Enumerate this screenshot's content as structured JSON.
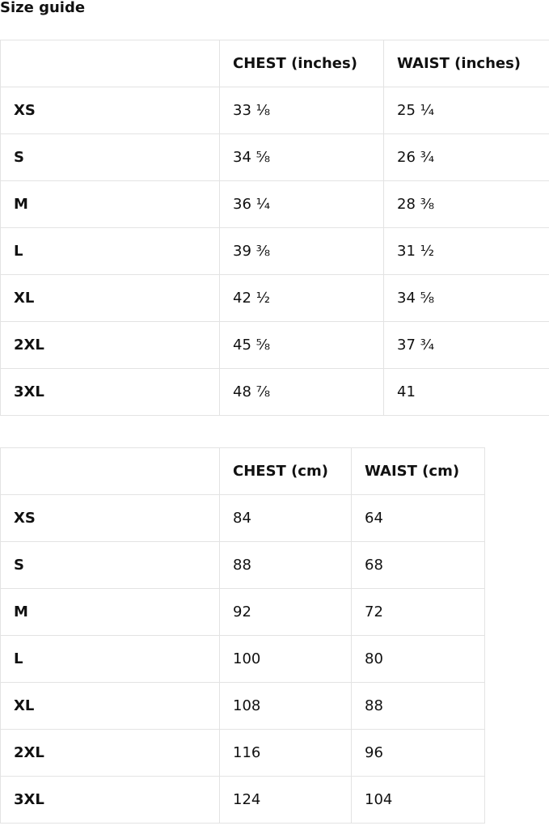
{
  "title": "Size guide",
  "inches_table": {
    "headers": [
      "",
      "CHEST (inches)",
      "WAIST (inches)"
    ],
    "rows": [
      [
        "XS",
        "33 ⅛",
        "25 ¼"
      ],
      [
        "S",
        "34 ⅝",
        "26 ¾"
      ],
      [
        "M",
        "36 ¼",
        "28 ⅜"
      ],
      [
        "L",
        "39 ⅜",
        "31 ½"
      ],
      [
        "XL",
        "42 ½",
        "34 ⅝"
      ],
      [
        "2XL",
        "45 ⅝",
        "37 ¾"
      ],
      [
        "3XL",
        "48 ⅞",
        "41"
      ]
    ]
  },
  "cm_table": {
    "headers": [
      "",
      "CHEST (cm)",
      "WAIST (cm)"
    ],
    "rows": [
      [
        "XS",
        "84",
        "64"
      ],
      [
        "S",
        "88",
        "68"
      ],
      [
        "M",
        "92",
        "72"
      ],
      [
        "L",
        "100",
        "80"
      ],
      [
        "XL",
        "108",
        "88"
      ],
      [
        "2XL",
        "116",
        "96"
      ],
      [
        "3XL",
        "124",
        "104"
      ]
    ]
  }
}
